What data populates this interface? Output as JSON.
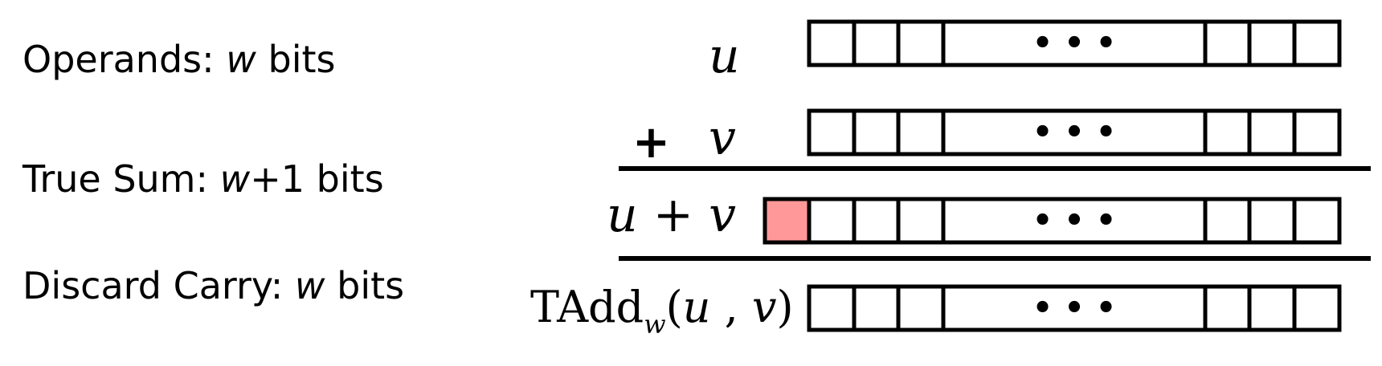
{
  "labels": {
    "operands_pre": "Operands: ",
    "operands_w": "w",
    "operands_post": " bits",
    "truesum_pre": "True Sum: ",
    "truesum_w": "w",
    "truesum_post": "+1 bits",
    "discard_pre": "Discard Carry: ",
    "discard_w": "w",
    "discard_post": " bits"
  },
  "math": {
    "u": "u",
    "plus_sign": "+",
    "v": "v",
    "sum_u": "u",
    "sum_plus": " + ",
    "sum_v": "v",
    "tadd_name": "TAdd",
    "tadd_sub": "w",
    "tadd_open": "(",
    "tadd_u": "u",
    "tadd_sep": " , ",
    "tadd_v": "v",
    "tadd_close": ")"
  },
  "registers": [
    {
      "name": "register-u",
      "ellipsis": "• • •",
      "carry_bit": false
    },
    {
      "name": "register-v",
      "ellipsis": "• • •",
      "carry_bit": false
    },
    {
      "name": "register-sum",
      "ellipsis": "• • •",
      "carry_bit": true
    },
    {
      "name": "register-tadd",
      "ellipsis": "• • •",
      "carry_bit": false
    }
  ],
  "colors": {
    "carry_fill": "#ff9999",
    "stroke": "#000000"
  }
}
